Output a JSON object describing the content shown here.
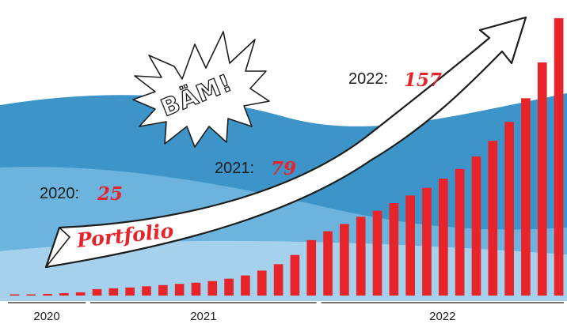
{
  "chart_data": {
    "type": "bar",
    "title": "",
    "xlabel": "",
    "ylabel": "",
    "year_groups": [
      {
        "label": "2020",
        "values": [
          0.2,
          0.3,
          0.4,
          0.6,
          0.8
        ]
      },
      {
        "label": "2021",
        "values": [
          1.6,
          1.8,
          2.0,
          2.3,
          2.6,
          2.9,
          3.2,
          3.6,
          4.2,
          5.0,
          6.2,
          7.8,
          10.1,
          13.8
        ]
      },
      {
        "label": "2022",
        "values": [
          16.0,
          17.8,
          19.6,
          21.1,
          23.0,
          24.9,
          26.8,
          29.1,
          31.5,
          34.6,
          38.5,
          43.2,
          49.1,
          58.0,
          69.0
        ]
      }
    ],
    "ylim": [
      0,
      70
    ],
    "bar_color": "#e8242b",
    "grid": false,
    "legend": "none"
  },
  "annotations": [
    {
      "label": "2020:",
      "value": "25"
    },
    {
      "label": "2021:",
      "value": "79"
    },
    {
      "label": "2022:",
      "value": "157"
    }
  ],
  "banner": {
    "text": "Portfolio"
  },
  "burst": {
    "text": "BÄM!"
  },
  "colors": {
    "accent": "#e8242b",
    "wave_dark": "#3d94c9",
    "wave_mid": "#6cb4de",
    "wave_light": "#a6d1ec",
    "ink": "#1d1d1b"
  }
}
